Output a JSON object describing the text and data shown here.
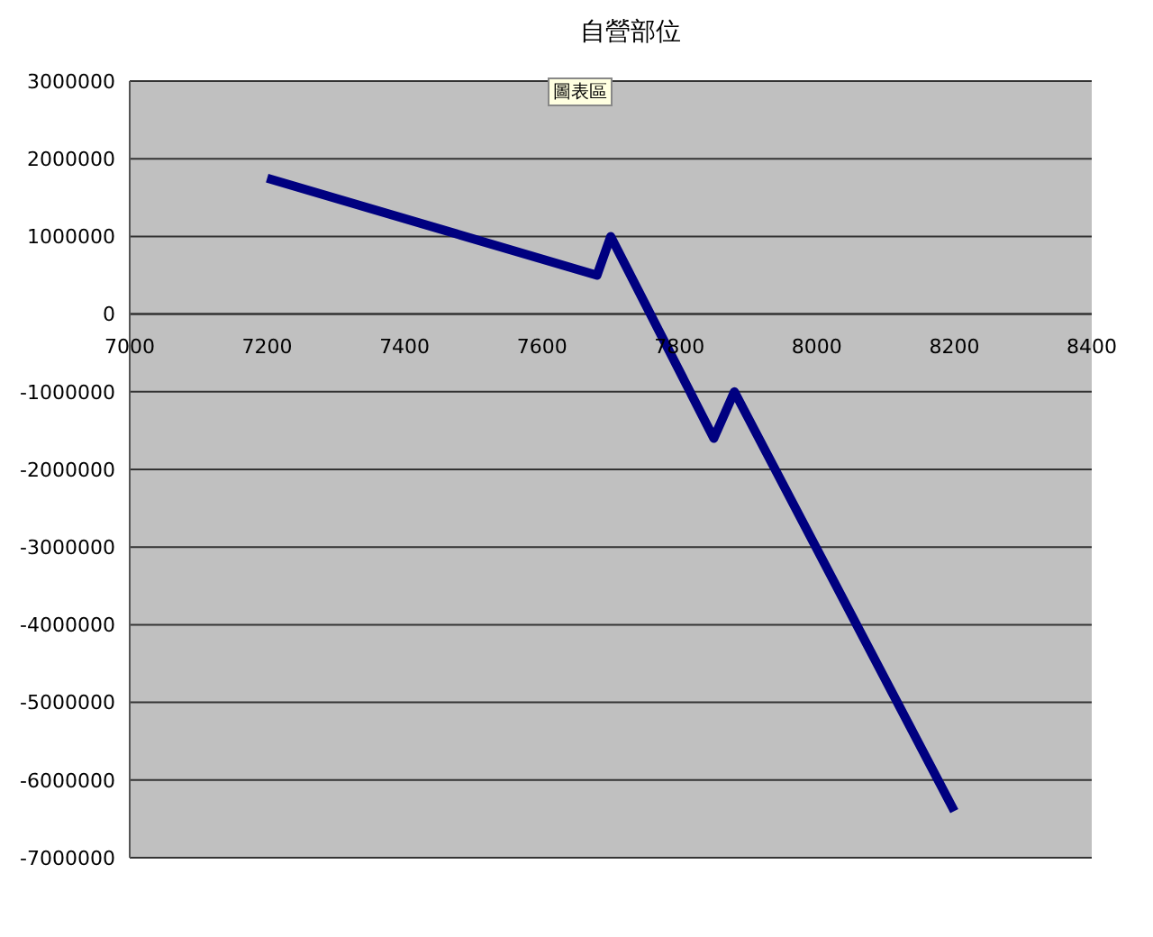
{
  "chart_data": {
    "type": "line",
    "title": "自營部位",
    "annotations": [
      "圖表區"
    ],
    "x": [
      7200,
      7680,
      7700,
      7850,
      7880,
      8200
    ],
    "series": [
      {
        "color": "#000080",
        "values": [
          1750000,
          500000,
          1000000,
          -1600000,
          -1000000,
          -6400000
        ]
      }
    ],
    "xlim": [
      7000,
      8400
    ],
    "xticks": [
      7000,
      7200,
      7400,
      7600,
      7800,
      8000,
      8200,
      8400
    ],
    "ylim": [
      -7000000,
      3000000
    ],
    "yticks": [
      -7000000,
      -6000000,
      -5000000,
      -4000000,
      -3000000,
      -2000000,
      -1000000,
      0,
      1000000,
      2000000,
      3000000
    ],
    "grid": "y",
    "legend": false,
    "marker": "none",
    "line_style": "solid"
  }
}
